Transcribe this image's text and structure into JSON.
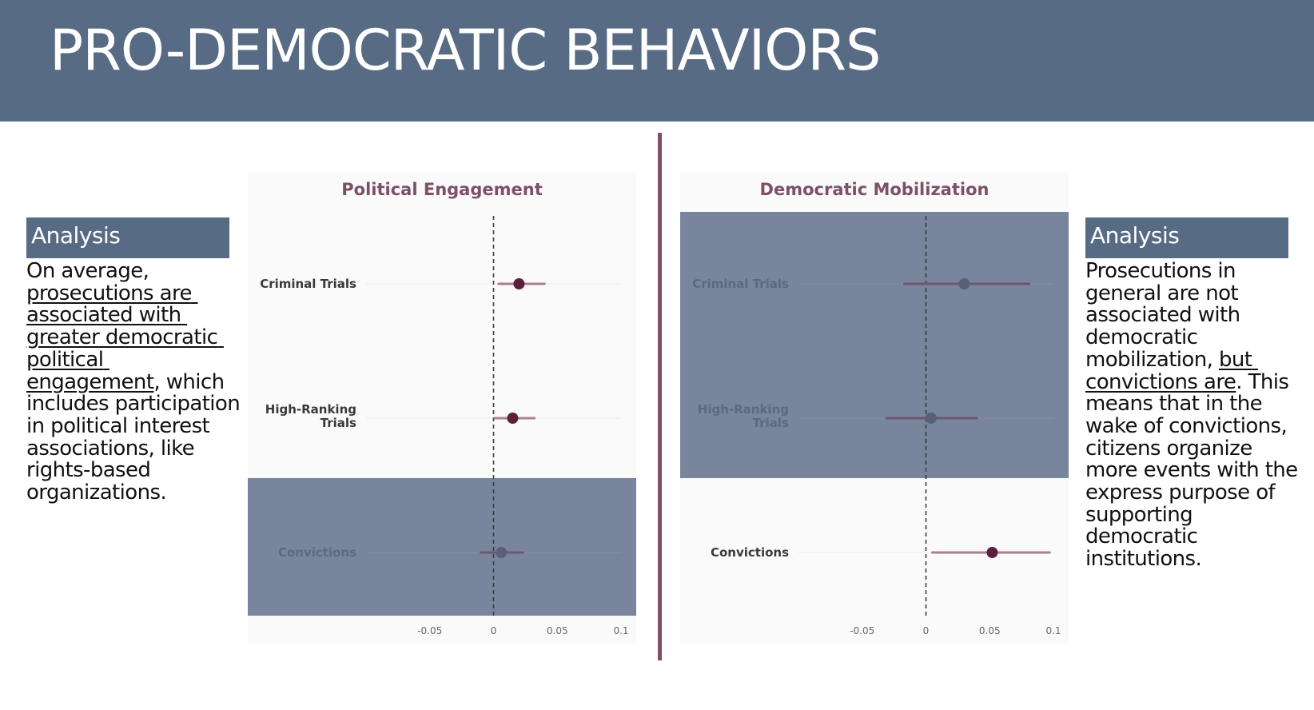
{
  "header": {
    "title": "PRO-DEMOCRATIC BEHAVIORS"
  },
  "left_analysis": {
    "heading": "Analysis",
    "segments": [
      {
        "text": "On average, ",
        "underline": false
      },
      {
        "text": "prosecutions are associated with greater democratic political engagement",
        "underline": true
      },
      {
        "text": ", which includes participation in political interest associations, like rights-based organizations.",
        "underline": false
      }
    ]
  },
  "right_analysis": {
    "heading": "Analysis",
    "segments": [
      {
        "text": "Prosecutions in general are not associated with democratic mobilization, ",
        "underline": false
      },
      {
        "text": "but convictions are",
        "underline": true
      },
      {
        "text": ". This means that in the wake of convictions, citizens organize more events with the express purpose of supporting democratic institutions.",
        "underline": false
      }
    ]
  },
  "colors": {
    "header": "#586b84",
    "accent": "#7e4f68",
    "point": "#5e1f3d",
    "ci": "#a8808f",
    "highlight": "#78859d",
    "panel_bg": "#fafafa"
  },
  "chart_data": [
    {
      "type": "dot-whisker",
      "title": "Political Engagement",
      "xlim": [
        -0.1,
        0.1
      ],
      "x_ticks": [
        -0.05,
        0,
        0.05,
        0.1
      ],
      "x_tick_labels": [
        "-0.05",
        "0",
        "0.05",
        "0.1"
      ],
      "reference_line": 0,
      "series": [
        {
          "label": [
            "Criminal Trials"
          ],
          "estimate": 0.02,
          "ci": [
            0.004,
            0.04
          ],
          "dimmed": false
        },
        {
          "label": [
            "High-Ranking",
            "Trials"
          ],
          "estimate": 0.015,
          "ci": [
            0.001,
            0.032
          ],
          "dimmed": false
        },
        {
          "label": [
            "Convictions"
          ],
          "estimate": 0.006,
          "ci": [
            -0.01,
            0.023
          ],
          "dimmed": true
        }
      ]
    },
    {
      "type": "dot-whisker",
      "title": "Democratic Mobilization",
      "xlim": [
        -0.1,
        0.1
      ],
      "x_ticks": [
        -0.05,
        0,
        0.05,
        0.1
      ],
      "x_tick_labels": [
        "-0.05",
        "0",
        "0.05",
        "0.1"
      ],
      "reference_line": 0,
      "series": [
        {
          "label": [
            "Criminal Trials"
          ],
          "estimate": 0.03,
          "ci": [
            -0.017,
            0.081
          ],
          "dimmed": true
        },
        {
          "label": [
            "High-Ranking",
            "Trials"
          ],
          "estimate": 0.004,
          "ci": [
            -0.031,
            0.04
          ],
          "dimmed": true
        },
        {
          "label": [
            "Convictions"
          ],
          "estimate": 0.052,
          "ci": [
            0.005,
            0.097
          ],
          "dimmed": false
        }
      ]
    }
  ]
}
